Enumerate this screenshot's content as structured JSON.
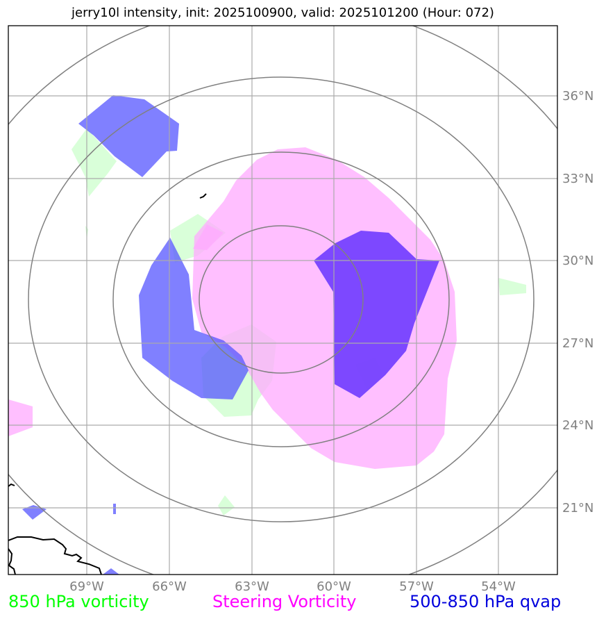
{
  "title": "jerry10l intensity, init: 2025100900, valid: 2025101200 (Hour: 072)",
  "axes": {
    "lon_labels": [
      "69°W",
      "66°W",
      "63°W",
      "60°W",
      "57°W",
      "54°W"
    ],
    "lat_labels": [
      "36°N",
      "33°N",
      "30°N",
      "27°N",
      "24°N",
      "21°N"
    ]
  },
  "legend": {
    "vorticity_850": "850 hPa vorticity",
    "steering": "Steering Vorticity",
    "qvap": "500-850 hPa qvap"
  },
  "colors": {
    "vorticity_850": "#00ff00",
    "steering": "#ff00ff",
    "qvap": "#0000ff",
    "grid": "#aaaaaa",
    "range_rings": "#808080"
  },
  "map": {
    "storm_center": {
      "lon": -62.0,
      "lat": 28.5
    },
    "range_rings": 4,
    "graticule_step_deg": 3
  }
}
